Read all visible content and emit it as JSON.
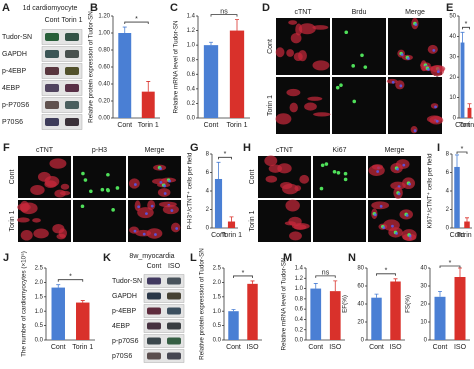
{
  "chart_data": [
    {
      "type": "bar",
      "panel": "B",
      "y_label": "Relative protein expression of Tudor-SN",
      "categories": [
        "Cont",
        "Torin 1"
      ],
      "values": [
        1.0,
        0.31
      ],
      "errors": [
        0.07,
        0.12
      ],
      "colors": [
        "#4a7fd4",
        "#d9312b"
      ],
      "ylim": [
        0,
        1.2
      ],
      "yticks": [
        {
          "value": 0,
          "label": "0.00"
        },
        {
          "value": 0.2,
          "label": "0.20"
        },
        {
          "value": 0.4,
          "label": "0.40"
        },
        {
          "value": 0.6,
          "label": "0.60"
        },
        {
          "value": 0.8,
          "label": "0.80"
        },
        {
          "value": 1,
          "label": "1.00"
        },
        {
          "value": 1.2,
          "label": "1.20"
        }
      ],
      "significance": "*"
    },
    {
      "type": "bar",
      "panel": "C",
      "y_label": "Relative mRNA level of Tudor-SN",
      "categories": [
        "Cont",
        "Torin 1"
      ],
      "values": [
        1.0,
        1.2
      ],
      "errors": [
        0.04,
        0.15
      ],
      "colors": [
        "#4a7fd4",
        "#d9312b"
      ],
      "ylim": [
        0,
        1.4
      ],
      "yticks": [
        {
          "value": 0,
          "label": "0.0"
        },
        0.2,
        0.4,
        0.6,
        0.8,
        {
          "value": 1,
          "label": "1.0"
        },
        1.2,
        1.4
      ],
      "significance": "ns"
    },
    {
      "type": "bar",
      "panel": "E",
      "y_label": "Brdu⁺/cTNT⁺ cells per field",
      "categories": [
        "Cont",
        "Torin 1"
      ],
      "values": [
        37,
        5
      ],
      "errors": [
        5,
        2
      ],
      "colors": [
        "#4a7fd4",
        "#d9312b"
      ],
      "ylim": [
        0,
        50
      ],
      "yticks": [
        0,
        10,
        20,
        30,
        40,
        50
      ],
      "significance": "*"
    },
    {
      "type": "bar",
      "panel": "G",
      "y_label": "P-H3⁺/cTNT⁺ cells per field",
      "categories": [
        "Cont",
        "Torin 1"
      ],
      "values": [
        5.3,
        0.7
      ],
      "errors": [
        1.8,
        0.5
      ],
      "colors": [
        "#4a7fd4",
        "#d9312b"
      ],
      "ylim": [
        0,
        8
      ],
      "yticks": [
        0,
        2,
        4,
        6,
        8
      ],
      "significance": "*"
    },
    {
      "type": "bar",
      "panel": "I",
      "y_label": "Ki67⁺/cTNT⁺ cells per field",
      "categories": [
        "Cont",
        "Torin 1"
      ],
      "values": [
        6.6,
        0.7
      ],
      "errors": [
        1.3,
        0.4
      ],
      "colors": [
        "#4a7fd4",
        "#d9312b"
      ],
      "ylim": [
        0,
        8
      ],
      "yticks": [
        0,
        2,
        4,
        6,
        8
      ],
      "significance": "*"
    },
    {
      "type": "bar",
      "panel": "J",
      "y_label": "The number of cardiomyocytes (×10⁵)",
      "categories": [
        "Cont",
        "Torin 1"
      ],
      "values": [
        1.82,
        1.3
      ],
      "errors": [
        0.1,
        0.07
      ],
      "colors": [
        "#4a7fd4",
        "#d9312b"
      ],
      "ylim": [
        0,
        2.5
      ],
      "yticks": [
        {
          "value": 0,
          "label": "0.0"
        },
        0.5,
        {
          "value": 1,
          "label": "1.0"
        },
        1.5,
        {
          "value": 2,
          "label": "2.0"
        },
        2.5
      ],
      "significance": "*"
    },
    {
      "type": "bar",
      "panel": "L",
      "y_label": "Relative protein expression of Tudor-SN",
      "categories": [
        "Cont",
        "ISO"
      ],
      "values": [
        1.0,
        1.95
      ],
      "errors": [
        0.06,
        0.1
      ],
      "colors": [
        "#4a7fd4",
        "#d9312b"
      ],
      "ylim": [
        0,
        2.5
      ],
      "yticks": [
        {
          "value": 0,
          "label": "0.0"
        },
        0.5,
        {
          "value": 1,
          "label": "1.0"
        },
        1.5,
        {
          "value": 2,
          "label": "2.0"
        },
        2.5
      ],
      "significance": "*"
    },
    {
      "type": "bar",
      "panel": "M",
      "y_label": "Relative mRNA level of Tudor-SN",
      "categories": [
        "Cont",
        "ISO"
      ],
      "values": [
        1.0,
        0.95
      ],
      "errors": [
        0.1,
        0.2
      ],
      "colors": [
        "#4a7fd4",
        "#d9312b"
      ],
      "ylim": [
        0,
        1.4
      ],
      "yticks": [
        {
          "value": 0,
          "label": "0.0"
        },
        0.2,
        0.4,
        0.6,
        0.8,
        {
          "value": 1,
          "label": "1.0"
        },
        1.2,
        1.4
      ],
      "significance": "ns"
    },
    {
      "type": "bar",
      "panel": "N",
      "y_label": "EF(%)",
      "categories": [
        "Cont",
        "ISO"
      ],
      "values": [
        47,
        65
      ],
      "errors": [
        4,
        3
      ],
      "colors": [
        "#4a7fd4",
        "#d9312b"
      ],
      "ylim": [
        0,
        80
      ],
      "yticks": [
        0,
        20,
        40,
        60,
        80
      ],
      "significance": "*"
    },
    {
      "type": "bar",
      "y_label": "FS(%)",
      "categories": [
        "Cont",
        "ISO"
      ],
      "values": [
        24,
        35
      ],
      "errors": [
        3,
        5
      ],
      "colors": [
        "#4a7fd4",
        "#d9312b"
      ],
      "ylim": [
        0,
        40
      ],
      "yticks": [
        0,
        10,
        20,
        30,
        40
      ],
      "significance": "*"
    }
  ],
  "blots": [
    {
      "panel": "A",
      "title": "1d cardiomyocyte",
      "lanes": [
        "Cont",
        "Torin 1"
      ],
      "rows": [
        "Tudor-SN",
        "GAPDH",
        "p-4EBP",
        "4EBP",
        "p-P70S6",
        "P70S6"
      ]
    },
    {
      "panel": "K",
      "title": "8w_myocardia",
      "lanes": [
        "Cont",
        "ISO"
      ],
      "rows": [
        "Tudor-SN",
        "GAPDH",
        "p-4EBP",
        "4EBP",
        "p-p70S6",
        "p70S6"
      ]
    }
  ],
  "micrographs": [
    {
      "panel": "D",
      "conditions": [
        "Cont",
        "Torin 1"
      ],
      "channels": [
        {
          "name": "cTNT",
          "color": "#e03030"
        },
        {
          "name": "Brdu",
          "color": "#30d040"
        },
        {
          "name": "Merge",
          "color": "#ffffff"
        }
      ]
    },
    {
      "panel": "F",
      "conditions": [
        "Cont",
        "Torin 1"
      ],
      "channels": [
        {
          "name": "cTNT",
          "color": "#e03030"
        },
        {
          "name": "p-H3",
          "color": "#30d040"
        },
        {
          "name": "Merge",
          "color": "#ffffff"
        }
      ]
    },
    {
      "panel": "H",
      "conditions": [
        "Cont",
        "Torin 1"
      ],
      "channels": [
        {
          "name": "cTNT",
          "color": "#e03030"
        },
        {
          "name": "Ki67",
          "color": "#30d040"
        },
        {
          "name": "Merge",
          "color": "#ffffff"
        }
      ]
    }
  ]
}
